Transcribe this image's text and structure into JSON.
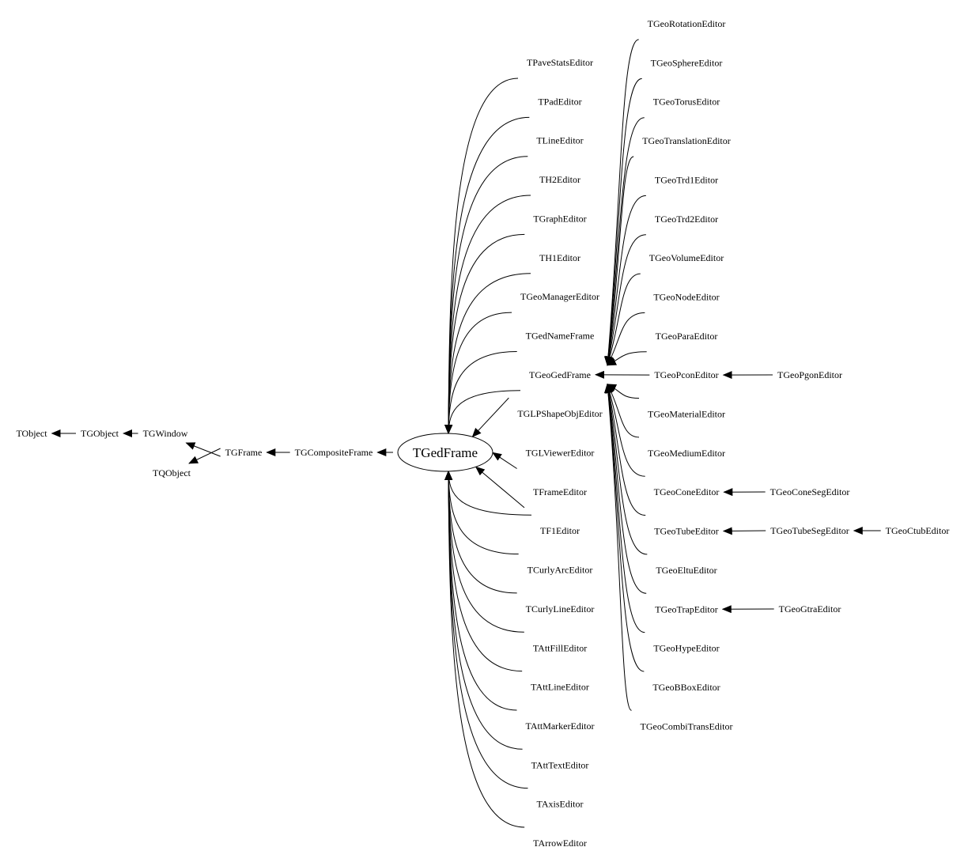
{
  "root": "TGedFrame",
  "nodes": [
    {
      "id": "TObject",
      "label": "TObject"
    },
    {
      "id": "TGObject",
      "label": "TGObject"
    },
    {
      "id": "TGWindow",
      "label": "TGWindow"
    },
    {
      "id": "TQObject",
      "label": "TQObject"
    },
    {
      "id": "TGFrame",
      "label": "TGFrame"
    },
    {
      "id": "TGCompositeFrame",
      "label": "TGCompositeFrame"
    },
    {
      "id": "TGedFrame",
      "label": "TGedFrame"
    },
    {
      "id": "TPaveStatsEditor",
      "label": "TPaveStatsEditor"
    },
    {
      "id": "TPadEditor",
      "label": "TPadEditor"
    },
    {
      "id": "TLineEditor",
      "label": "TLineEditor"
    },
    {
      "id": "TH2Editor",
      "label": "TH2Editor"
    },
    {
      "id": "TGraphEditor",
      "label": "TGraphEditor"
    },
    {
      "id": "TH1Editor",
      "label": "TH1Editor"
    },
    {
      "id": "TGeoManagerEditor",
      "label": "TGeoManagerEditor"
    },
    {
      "id": "TGedNameFrame",
      "label": "TGedNameFrame"
    },
    {
      "id": "TGeoGedFrame",
      "label": "TGeoGedFrame"
    },
    {
      "id": "TGLPShapeObjEditor",
      "label": "TGLPShapeObjEditor"
    },
    {
      "id": "TGLViewerEditor",
      "label": "TGLViewerEditor"
    },
    {
      "id": "TFrameEditor",
      "label": "TFrameEditor"
    },
    {
      "id": "TF1Editor",
      "label": "TF1Editor"
    },
    {
      "id": "TCurlyArcEditor",
      "label": "TCurlyArcEditor"
    },
    {
      "id": "TCurlyLineEditor",
      "label": "TCurlyLineEditor"
    },
    {
      "id": "TAttFillEditor",
      "label": "TAttFillEditor"
    },
    {
      "id": "TAttLineEditor",
      "label": "TAttLineEditor"
    },
    {
      "id": "TAttMarkerEditor",
      "label": "TAttMarkerEditor"
    },
    {
      "id": "TAttTextEditor",
      "label": "TAttTextEditor"
    },
    {
      "id": "TAxisEditor",
      "label": "TAxisEditor"
    },
    {
      "id": "TArrowEditor",
      "label": "TArrowEditor"
    },
    {
      "id": "TGeoRotationEditor",
      "label": "TGeoRotationEditor"
    },
    {
      "id": "TGeoSphereEditor",
      "label": "TGeoSphereEditor"
    },
    {
      "id": "TGeoTorusEditor",
      "label": "TGeoTorusEditor"
    },
    {
      "id": "TGeoTranslationEditor",
      "label": "TGeoTranslationEditor"
    },
    {
      "id": "TGeoTrd1Editor",
      "label": "TGeoTrd1Editor"
    },
    {
      "id": "TGeoTrd2Editor",
      "label": "TGeoTrd2Editor"
    },
    {
      "id": "TGeoVolumeEditor",
      "label": "TGeoVolumeEditor"
    },
    {
      "id": "TGeoNodeEditor",
      "label": "TGeoNodeEditor"
    },
    {
      "id": "TGeoParaEditor",
      "label": "TGeoParaEditor"
    },
    {
      "id": "TGeoPconEditor",
      "label": "TGeoPconEditor"
    },
    {
      "id": "TGeoMaterialEditor",
      "label": "TGeoMaterialEditor"
    },
    {
      "id": "TGeoMediumEditor",
      "label": "TGeoMediumEditor"
    },
    {
      "id": "TGeoConeEditor",
      "label": "TGeoConeEditor"
    },
    {
      "id": "TGeoTubeEditor",
      "label": "TGeoTubeEditor"
    },
    {
      "id": "TGeoEltuEditor",
      "label": "TGeoEltuEditor"
    },
    {
      "id": "TGeoTrapEditor",
      "label": "TGeoTrapEditor"
    },
    {
      "id": "TGeoHypeEditor",
      "label": "TGeoHypeEditor"
    },
    {
      "id": "TGeoBBoxEditor",
      "label": "TGeoBBoxEditor"
    },
    {
      "id": "TGeoCombiTransEditor",
      "label": "TGeoCombiTransEditor"
    },
    {
      "id": "TGeoPgonEditor",
      "label": "TGeoPgonEditor"
    },
    {
      "id": "TGeoConeSegEditor",
      "label": "TGeoConeSegEditor"
    },
    {
      "id": "TGeoTubeSegEditor",
      "label": "TGeoTubeSegEditor"
    },
    {
      "id": "TGeoCtubEditor",
      "label": "TGeoCtubEditor"
    },
    {
      "id": "TGeoGtraEditor",
      "label": "TGeoGtraEditor"
    }
  ],
  "edges": [
    [
      "TGObject",
      "TObject"
    ],
    [
      "TGWindow",
      "TGObject"
    ],
    [
      "TGFrame",
      "TGWindow"
    ],
    [
      "TGFrame",
      "TQObject"
    ],
    [
      "TGCompositeFrame",
      "TGFrame"
    ],
    [
      "TGedFrame",
      "TGCompositeFrame"
    ],
    [
      "TPaveStatsEditor",
      "TGedFrame"
    ],
    [
      "TPadEditor",
      "TGedFrame"
    ],
    [
      "TLineEditor",
      "TGedFrame"
    ],
    [
      "TH2Editor",
      "TGedFrame"
    ],
    [
      "TGraphEditor",
      "TGedFrame"
    ],
    [
      "TH1Editor",
      "TGedFrame"
    ],
    [
      "TGeoManagerEditor",
      "TGedFrame"
    ],
    [
      "TGedNameFrame",
      "TGedFrame"
    ],
    [
      "TGeoGedFrame",
      "TGedFrame"
    ],
    [
      "TGLPShapeObjEditor",
      "TGedFrame"
    ],
    [
      "TGLViewerEditor",
      "TGedFrame"
    ],
    [
      "TFrameEditor",
      "TGedFrame"
    ],
    [
      "TF1Editor",
      "TGedFrame"
    ],
    [
      "TCurlyArcEditor",
      "TGedFrame"
    ],
    [
      "TCurlyLineEditor",
      "TGedFrame"
    ],
    [
      "TAttFillEditor",
      "TGedFrame"
    ],
    [
      "TAttLineEditor",
      "TGedFrame"
    ],
    [
      "TAttMarkerEditor",
      "TGedFrame"
    ],
    [
      "TAttTextEditor",
      "TGedFrame"
    ],
    [
      "TAxisEditor",
      "TGedFrame"
    ],
    [
      "TArrowEditor",
      "TGedFrame"
    ],
    [
      "TGeoRotationEditor",
      "TGeoGedFrame"
    ],
    [
      "TGeoSphereEditor",
      "TGeoGedFrame"
    ],
    [
      "TGeoTorusEditor",
      "TGeoGedFrame"
    ],
    [
      "TGeoTranslationEditor",
      "TGeoGedFrame"
    ],
    [
      "TGeoTrd1Editor",
      "TGeoGedFrame"
    ],
    [
      "TGeoTrd2Editor",
      "TGeoGedFrame"
    ],
    [
      "TGeoVolumeEditor",
      "TGeoGedFrame"
    ],
    [
      "TGeoNodeEditor",
      "TGeoGedFrame"
    ],
    [
      "TGeoParaEditor",
      "TGeoGedFrame"
    ],
    [
      "TGeoPconEditor",
      "TGeoGedFrame"
    ],
    [
      "TGeoMaterialEditor",
      "TGeoGedFrame"
    ],
    [
      "TGeoMediumEditor",
      "TGeoGedFrame"
    ],
    [
      "TGeoConeEditor",
      "TGeoGedFrame"
    ],
    [
      "TGeoTubeEditor",
      "TGeoGedFrame"
    ],
    [
      "TGeoEltuEditor",
      "TGeoGedFrame"
    ],
    [
      "TGeoTrapEditor",
      "TGeoGedFrame"
    ],
    [
      "TGeoHypeEditor",
      "TGeoGedFrame"
    ],
    [
      "TGeoBBoxEditor",
      "TGeoGedFrame"
    ],
    [
      "TGeoCombiTransEditor",
      "TGeoGedFrame"
    ],
    [
      "TGeoPgonEditor",
      "TGeoPconEditor"
    ],
    [
      "TGeoConeSegEditor",
      "TGeoConeEditor"
    ],
    [
      "TGeoTubeSegEditor",
      "TGeoTubeEditor"
    ],
    [
      "TGeoCtubEditor",
      "TGeoTubeSegEditor"
    ],
    [
      "TGeoGtraEditor",
      "TGeoTrapEditor"
    ]
  ]
}
